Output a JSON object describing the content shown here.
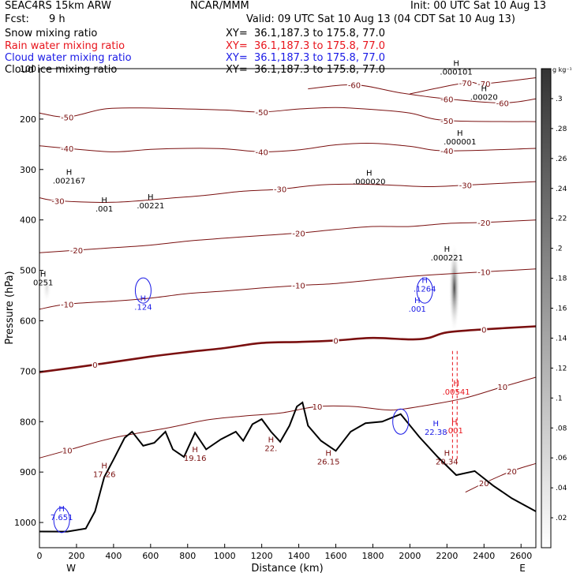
{
  "header": {
    "model": "SEAC4RS 15km ARW",
    "center": "NCAR/MMM",
    "init": "Init: 00 UTC Sat 10 Aug 13",
    "fcst_label": "Fcst:",
    "fcst_value": "9 h",
    "valid": "Valid: 09 UTC Sat 10 Aug 13 (04 CDT Sat 10 Aug 13)"
  },
  "fields": [
    {
      "name": "Snow mixing ratio",
      "xy": "XY=  36.1,187.3 to 175.8, 77.0",
      "color": "#000000"
    },
    {
      "name": "Rain water mixing ratio",
      "xy": "XY=  36.1,187.3 to 175.8, 77.0",
      "color": "#e8141c"
    },
    {
      "name": "Cloud water mixing ratio",
      "xy": "XY=  36.1,187.3 to 175.8, 77.0",
      "color": "#1a1ae6"
    },
    {
      "name": "Cloud ice mixing ratio",
      "xy": "XY=  36.1,187.3 to 175.8, 77.0",
      "color": "#000000"
    }
  ],
  "colorbar": {
    "unit": "g kg⁻¹",
    "ticks": [
      ".02",
      ".04",
      ".06",
      ".08",
      ".1",
      ".12",
      ".14",
      ".16",
      ".18",
      ".2",
      ".22",
      ".24",
      ".26",
      ".28",
      ".3"
    ],
    "range": [
      0,
      0.32
    ]
  },
  "chart_data": {
    "type": "cross-section contour",
    "xlabel": "Distance (km)",
    "ylabel": "Pressure (hPa)",
    "xlim": [
      0,
      2680
    ],
    "ylim": [
      1050,
      100
    ],
    "x_ticks": [
      0,
      200,
      400,
      600,
      800,
      1000,
      1200,
      1400,
      1600,
      1800,
      2000,
      2200,
      2400,
      2600
    ],
    "y_ticks": [
      200,
      300,
      400,
      500,
      600,
      700,
      800,
      900,
      1000
    ],
    "y_tick_100_label": "100",
    "x_end_labels": {
      "west": "W",
      "east": "E"
    },
    "temperature_contours": [
      {
        "level": -70,
        "label": "-70",
        "points": [
          [
            2000,
            150
          ],
          [
            2300,
            128
          ],
          [
            2400,
            130
          ],
          [
            2680,
            118
          ]
        ]
      },
      {
        "level": -60,
        "label": "-60",
        "points": [
          [
            1450,
            140
          ],
          [
            1700,
            132
          ],
          [
            1950,
            148
          ],
          [
            2200,
            160
          ],
          [
            2500,
            168
          ],
          [
            2680,
            160
          ]
        ]
      },
      {
        "level": -50,
        "label": "-50",
        "points": [
          [
            0,
            188
          ],
          [
            150,
            196
          ],
          [
            350,
            180
          ],
          [
            550,
            178
          ],
          [
            800,
            180
          ],
          [
            1000,
            182
          ],
          [
            1200,
            186
          ],
          [
            1400,
            180
          ],
          [
            1600,
            177
          ],
          [
            1800,
            181
          ],
          [
            2000,
            188
          ],
          [
            2200,
            203
          ],
          [
            2680,
            205
          ]
        ]
      },
      {
        "level": -40,
        "label": "-40",
        "points": [
          [
            0,
            253
          ],
          [
            150,
            258
          ],
          [
            400,
            265
          ],
          [
            600,
            260
          ],
          [
            800,
            258
          ],
          [
            1000,
            259
          ],
          [
            1200,
            265
          ],
          [
            1400,
            261
          ],
          [
            1600,
            251
          ],
          [
            1800,
            248
          ],
          [
            2000,
            254
          ],
          [
            2200,
            263
          ],
          [
            2680,
            258
          ]
        ]
      },
      {
        "level": -30,
        "label": "-30",
        "points": [
          [
            0,
            356
          ],
          [
            100,
            362
          ],
          [
            400,
            365
          ],
          [
            700,
            357
          ],
          [
            900,
            351
          ],
          [
            1100,
            343
          ],
          [
            1300,
            339
          ],
          [
            1500,
            331
          ],
          [
            1700,
            329
          ],
          [
            1900,
            331
          ],
          [
            2100,
            334
          ],
          [
            2300,
            331
          ],
          [
            2680,
            324
          ]
        ]
      },
      {
        "level": -20,
        "label": "-20",
        "points": [
          [
            0,
            465
          ],
          [
            200,
            460
          ],
          [
            400,
            455
          ],
          [
            600,
            450
          ],
          [
            800,
            442
          ],
          [
            1000,
            436
          ],
          [
            1200,
            431
          ],
          [
            1400,
            426
          ],
          [
            1600,
            419
          ],
          [
            1800,
            413
          ],
          [
            2000,
            413
          ],
          [
            2200,
            407
          ],
          [
            2400,
            405
          ],
          [
            2680,
            400
          ]
        ]
      },
      {
        "level": -10,
        "label": "-10",
        "points": [
          [
            0,
            577
          ],
          [
            150,
            567
          ],
          [
            400,
            561
          ],
          [
            600,
            555
          ],
          [
            800,
            546
          ],
          [
            1000,
            541
          ],
          [
            1200,
            535
          ],
          [
            1400,
            530
          ],
          [
            1600,
            526
          ],
          [
            1800,
            519
          ],
          [
            2000,
            512
          ],
          [
            2200,
            507
          ],
          [
            2400,
            503
          ],
          [
            2680,
            497
          ]
        ]
      },
      {
        "level": 0,
        "label": "0",
        "points": [
          [
            0,
            702
          ],
          [
            300,
            687
          ],
          [
            600,
            671
          ],
          [
            800,
            662
          ],
          [
            1000,
            654
          ],
          [
            1200,
            644
          ],
          [
            1400,
            642
          ],
          [
            1600,
            639
          ],
          [
            1800,
            634
          ],
          [
            2000,
            637
          ],
          [
            2100,
            634
          ],
          [
            2200,
            623
          ],
          [
            2400,
            617
          ],
          [
            2680,
            611
          ]
        ]
      },
      {
        "level": 10,
        "label": "10",
        "points": [
          [
            0,
            872
          ],
          [
            150,
            857
          ],
          [
            400,
            832
          ],
          [
            700,
            812
          ],
          [
            900,
            797
          ],
          [
            1100,
            789
          ],
          [
            1300,
            783
          ],
          [
            1500,
            770
          ],
          [
            1700,
            770
          ],
          [
            1900,
            777
          ],
          [
            2100,
            767
          ],
          [
            2300,
            753
          ],
          [
            2500,
            731
          ],
          [
            2680,
            712
          ]
        ]
      },
      {
        "level": 20,
        "label": "20",
        "points": [
          [
            2300,
            940
          ],
          [
            2400,
            922
          ],
          [
            2550,
            898
          ],
          [
            2680,
            883
          ]
        ]
      }
    ],
    "terrain_pressure": [
      [
        0,
        1018
      ],
      [
        150,
        1018
      ],
      [
        250,
        1012
      ],
      [
        300,
        978
      ],
      [
        350,
        910
      ],
      [
        400,
        875
      ],
      [
        460,
        832
      ],
      [
        500,
        820
      ],
      [
        560,
        848
      ],
      [
        620,
        842
      ],
      [
        680,
        820
      ],
      [
        720,
        855
      ],
      [
        780,
        870
      ],
      [
        840,
        822
      ],
      [
        900,
        855
      ],
      [
        980,
        835
      ],
      [
        1060,
        820
      ],
      [
        1100,
        838
      ],
      [
        1150,
        805
      ],
      [
        1200,
        795
      ],
      [
        1250,
        820
      ],
      [
        1300,
        840
      ],
      [
        1350,
        808
      ],
      [
        1390,
        770
      ],
      [
        1420,
        762
      ],
      [
        1450,
        808
      ],
      [
        1520,
        838
      ],
      [
        1600,
        858
      ],
      [
        1680,
        820
      ],
      [
        1760,
        803
      ],
      [
        1850,
        800
      ],
      [
        1950,
        785
      ],
      [
        2050,
        830
      ],
      [
        2150,
        870
      ],
      [
        2250,
        906
      ],
      [
        2350,
        898
      ],
      [
        2450,
        927
      ],
      [
        2550,
        952
      ],
      [
        2680,
        978
      ]
    ],
    "contour_labels": [
      {
        "x": 1780,
        "p": 329,
        "text": ".000020",
        "color": "#000000"
      },
      {
        "x": 2250,
        "p": 112,
        "text": ".000101",
        "color": "#000000"
      },
      {
        "x": 2400,
        "p": 162,
        "text": ".00020",
        "color": "#000000"
      },
      {
        "x": 2270,
        "p": 250,
        "text": ".000001",
        "color": "#000000"
      },
      {
        "x": 160,
        "p": 328,
        "text": ".002167",
        "color": "#000000"
      },
      {
        "x": 350,
        "p": 383,
        "text": ".001",
        "color": "#000000"
      },
      {
        "x": 600,
        "p": 377,
        "text": ".00221",
        "color": "#000000"
      },
      {
        "x": 2200,
        "p": 480,
        "text": ".000221",
        "color": "#000000"
      },
      {
        "x": 2080,
        "p": 542,
        "text": ".1264",
        "color": "#1a1ae6"
      },
      {
        "x": 2040,
        "p": 582,
        "text": ".001",
        "color": "#1a1ae6"
      },
      {
        "x": 560,
        "p": 578,
        "text": ".124",
        "color": "#1a1ae6"
      },
      {
        "x": 2140,
        "p": 826,
        "text": "22.38",
        "color": "#1a1ae6"
      },
      {
        "x": 120,
        "p": 995,
        "text": "7.651",
        "color": "#1a1ae6"
      },
      {
        "x": 2250,
        "p": 746,
        "text": ".00541",
        "color": "#e8141c"
      },
      {
        "x": 2240,
        "p": 823,
        "text": ".001",
        "color": "#e8141c"
      },
      {
        "x": 20,
        "p": 530,
        "text": "0251",
        "color": "#000000"
      },
      {
        "x": 350,
        "p": 910,
        "text": "17.26",
        "color": "#7a1010"
      },
      {
        "x": 840,
        "p": 878,
        "text": "19.16",
        "color": "#7a1010"
      },
      {
        "x": 1250,
        "p": 858,
        "text": "22.",
        "color": "#7a1010"
      },
      {
        "x": 1560,
        "p": 885,
        "text": "26.15",
        "color": "#7a1010"
      },
      {
        "x": 2200,
        "p": 885,
        "text": "20.34",
        "color": "#7a1010"
      }
    ],
    "shading_regions": [
      {
        "x": 2240,
        "p_center": 535,
        "p_half": 90,
        "x_half": 30,
        "max": 0.28
      },
      {
        "x": 40,
        "p_center": 535,
        "p_half": 30,
        "x_half": 25,
        "max": 0.05
      }
    ]
  }
}
